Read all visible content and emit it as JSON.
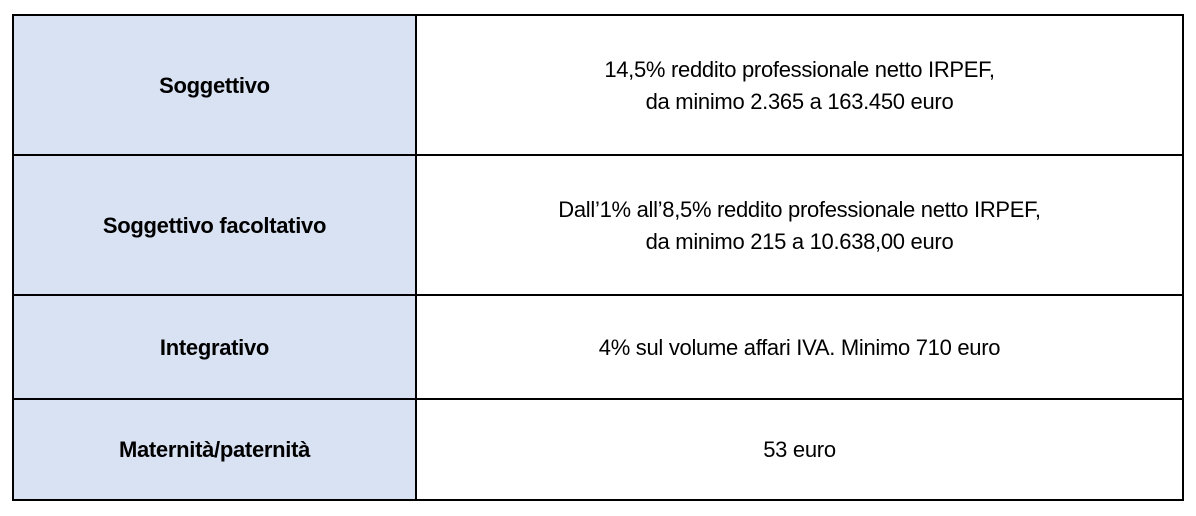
{
  "table": {
    "rows": [
      [
        "Soggettivo",
        [
          "14,5% reddito professionale netto IRPEF,",
          "da minimo 2.365 a 163.450 euro"
        ]
      ],
      [
        "Soggettivo facoltativo",
        [
          "Dall’1% all’8,5% reddito professionale netto IRPEF,",
          "da minimo 215 a 10.638,00 euro"
        ]
      ],
      [
        "Integrativo",
        [
          "4% sul volume affari IVA. Minimo 710 euro"
        ]
      ],
      [
        "Maternità/paternità",
        [
          "53 euro"
        ]
      ]
    ]
  }
}
